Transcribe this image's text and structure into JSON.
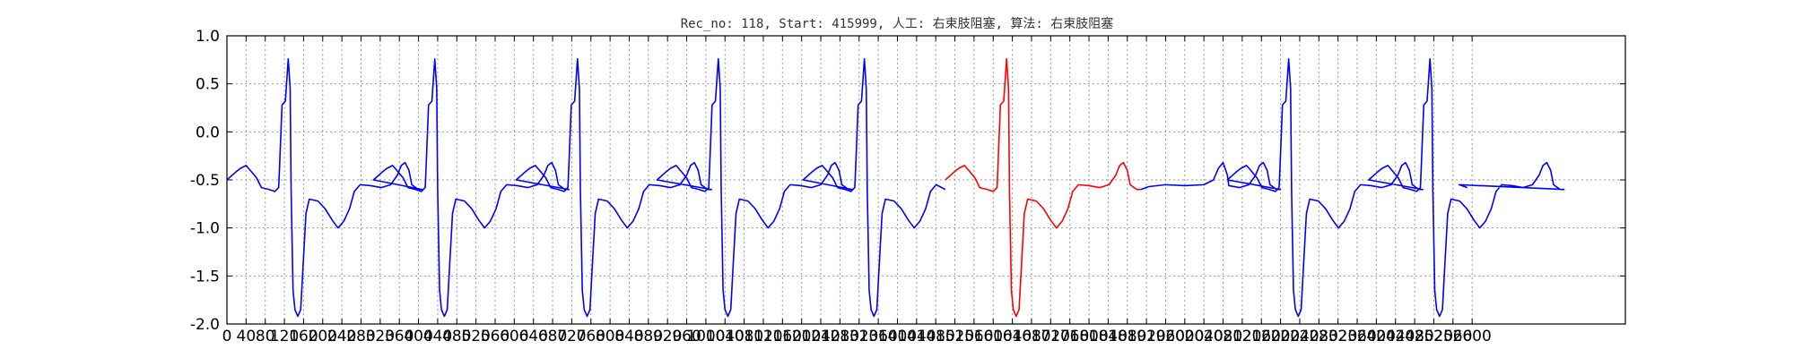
{
  "chart_data": {
    "type": "line",
    "title": "Rec_no: 118, Start: 415999, 人工: 右束肢阻塞, 算法: 右束肢阻塞",
    "xlabel": "",
    "ylabel": "",
    "xlim": [
      0,
      2920
    ],
    "ylim": [
      -2.0,
      1.0
    ],
    "yticks": [
      1.0,
      0.5,
      0.0,
      -0.5,
      -1.0,
      -1.5,
      -2.0
    ],
    "ytick_labels": [
      "1.0",
      "0.5",
      "0.0",
      "-0.5",
      "-1.0",
      "-1.5",
      "-2.0"
    ],
    "xticks": [
      0,
      40,
      80,
      120,
      160,
      200,
      240,
      280,
      320,
      360,
      400,
      440,
      480,
      520,
      560,
      600,
      640,
      680,
      720,
      760,
      800,
      840,
      880,
      920,
      960,
      1000,
      1040,
      1080,
      1120,
      1160,
      1200,
      1240,
      1280,
      1320,
      1360,
      1400,
      1440,
      1480,
      1520,
      1560,
      1600,
      1640,
      1680,
      1720,
      1760,
      1800,
      1840,
      1880,
      1920,
      1960,
      2000,
      2040,
      2080,
      2120,
      2160,
      2200,
      2240,
      2280,
      2320,
      2360,
      2400,
      2440,
      2480,
      2520,
      2560,
      2600
    ],
    "xtick_labels": [
      "0",
      "40",
      "80",
      "120",
      "160",
      "200",
      "240",
      "280",
      "320",
      "360",
      "400",
      "440",
      "480",
      "520",
      "560",
      "600",
      "640",
      "680",
      "720",
      "760",
      "800",
      "840",
      "880",
      "920",
      "960",
      "1000",
      "1040",
      "1080",
      "1120",
      "1160",
      "1200",
      "1240",
      "1280",
      "1320",
      "1360",
      "1400",
      "1440",
      "1480",
      "1520",
      "1560",
      "1600",
      "1640",
      "1680",
      "1720",
      "1760",
      "1800",
      "1840",
      "1880",
      "1920",
      "1960",
      "2000",
      "2040",
      "2080",
      "2120",
      "2160",
      "2200",
      "2240",
      "2280",
      "2320",
      "2360",
      "2400",
      "2440",
      "2480",
      "2520",
      "2560",
      "2600"
    ],
    "grid": true,
    "beat_template": [
      [
        0,
        -0.5
      ],
      [
        18,
        -0.42
      ],
      [
        28,
        -0.38
      ],
      [
        40,
        -0.35
      ],
      [
        52,
        -0.42
      ],
      [
        62,
        -0.48
      ],
      [
        72,
        -0.58
      ],
      [
        88,
        -0.6
      ],
      [
        100,
        -0.62
      ],
      [
        108,
        -0.58
      ],
      [
        110,
        -0.35
      ],
      [
        115,
        0.28
      ],
      [
        122,
        0.32
      ],
      [
        128,
        0.76
      ],
      [
        132,
        0.45
      ],
      [
        134,
        -0.6
      ],
      [
        138,
        -1.65
      ],
      [
        142,
        -1.85
      ],
      [
        148,
        -1.92
      ],
      [
        154,
        -1.85
      ],
      [
        160,
        -1.3
      ],
      [
        165,
        -0.85
      ],
      [
        172,
        -0.7
      ],
      [
        190,
        -0.72
      ],
      [
        205,
        -0.8
      ],
      [
        220,
        -0.92
      ],
      [
        232,
        -1.0
      ],
      [
        244,
        -0.93
      ],
      [
        256,
        -0.8
      ],
      [
        266,
        -0.62
      ],
      [
        278,
        -0.55
      ],
      [
        300,
        -0.56
      ],
      [
        322,
        -0.58
      ],
      [
        342,
        -0.55
      ],
      [
        356,
        -0.45
      ],
      [
        364,
        -0.35
      ],
      [
        372,
        -0.32
      ],
      [
        380,
        -0.4
      ],
      [
        386,
        -0.55
      ],
      [
        400,
        -0.6
      ],
      [
        408,
        -0.6
      ]
    ],
    "series": [
      {
        "color": "#0000ff",
        "beats": [
          0,
          306,
          604,
          898,
          1203,
          1792,
          2089,
          2384
        ],
        "tail": [
          [
            2573,
            -0.55
          ],
          [
            2590,
            -0.58
          ]
        ]
      },
      {
        "color": "#ff0000",
        "beats": [
          1500
        ],
        "tail": []
      }
    ]
  }
}
